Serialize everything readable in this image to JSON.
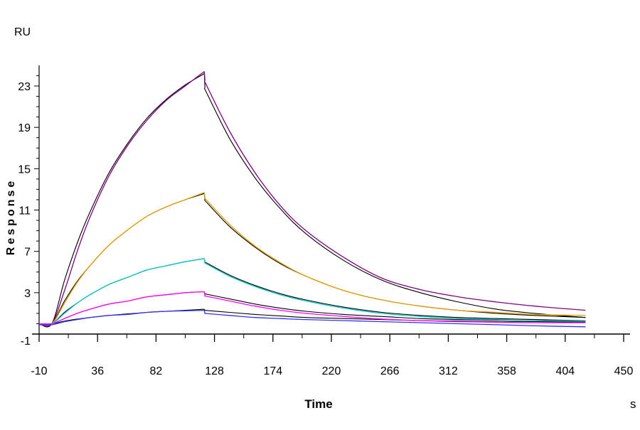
{
  "chart_data": {
    "type": "line",
    "title": "",
    "unit_label": "RU",
    "ylabel": "Response",
    "xlabel": "Time",
    "x_unit": "s",
    "xlim": [
      -10,
      450
    ],
    "ylim": [
      -1,
      25
    ],
    "x_ticks": [
      -10,
      36,
      82,
      128,
      174,
      220,
      266,
      312,
      358,
      404,
      450
    ],
    "y_ticks": [
      -1,
      3,
      7,
      11,
      15,
      19,
      23
    ],
    "grid": false,
    "legend": "none",
    "association_time": [
      -10,
      0,
      10,
      20,
      30,
      45,
      60,
      75,
      90,
      105,
      120
    ],
    "dissociation_time": [
      120,
      140,
      160,
      180,
      200,
      230,
      260,
      290,
      320,
      350,
      380,
      420
    ],
    "series": [
      {
        "kind": "fit",
        "color": "#000000",
        "association": [
          0,
          0,
          4.2,
          7.8,
          10.8,
          14.6,
          17.5,
          19.9,
          21.7,
          23.1,
          24.2
        ],
        "dissociation": [
          22.8,
          17.9,
          14.1,
          11.1,
          8.7,
          6.1,
          4.2,
          3.0,
          2.1,
          1.4,
          1.0,
          0.6
        ]
      },
      {
        "kind": "fit",
        "color": "#000000",
        "association": [
          0,
          0,
          2.2,
          4.1,
          5.6,
          7.6,
          9.1,
          10.4,
          11.3,
          12.0,
          12.6
        ],
        "dissociation": [
          12.0,
          9.4,
          7.4,
          5.8,
          4.6,
          3.2,
          2.3,
          1.7,
          1.3,
          1.0,
          0.8,
          0.6
        ]
      },
      {
        "kind": "fit",
        "color": "#000000",
        "association": [
          0,
          0,
          1.1,
          2.0,
          2.8,
          3.8,
          4.5,
          5.2,
          5.6,
          6.0,
          6.3
        ],
        "dissociation": [
          6.0,
          4.7,
          3.7,
          2.9,
          2.3,
          1.6,
          1.1,
          0.8,
          0.6,
          0.5,
          0.4,
          0.3
        ]
      },
      {
        "kind": "fit",
        "color": "#000000",
        "association": [
          0,
          0,
          0.5,
          1.0,
          1.4,
          1.9,
          2.2,
          2.6,
          2.8,
          3.0,
          3.1
        ],
        "dissociation": [
          2.9,
          2.4,
          1.9,
          1.5,
          1.2,
          0.9,
          0.7,
          0.5,
          0.4,
          0.35,
          0.3,
          0.25
        ]
      },
      {
        "kind": "fit",
        "color": "#000000",
        "association": [
          0,
          0,
          0.25,
          0.45,
          0.6,
          0.8,
          0.95,
          1.1,
          1.2,
          1.3,
          1.4
        ],
        "dissociation": [
          1.3,
          1.1,
          0.9,
          0.75,
          0.6,
          0.5,
          0.4,
          0.3,
          0.25,
          0.2,
          0.2,
          0.15
        ]
      },
      {
        "kind": "measured",
        "color": "#800080",
        "association": [
          0,
          0,
          3.2,
          7.0,
          10.3,
          14.3,
          17.3,
          19.7,
          21.6,
          23.0,
          24.4
        ],
        "dissociation": [
          23.5,
          18.6,
          14.6,
          11.4,
          9.0,
          6.4,
          4.4,
          3.3,
          2.6,
          2.1,
          1.7,
          1.3
        ]
      },
      {
        "kind": "measured",
        "color": "#e8a000",
        "association": [
          0,
          0,
          2.0,
          4.0,
          5.6,
          7.6,
          9.1,
          10.4,
          11.3,
          12.0,
          12.7
        ],
        "dissociation": [
          12.2,
          9.6,
          7.5,
          5.9,
          4.6,
          3.2,
          2.3,
          1.7,
          1.3,
          1.1,
          0.9,
          0.8
        ]
      },
      {
        "kind": "measured",
        "color": "#00c8c8",
        "association": [
          0,
          0,
          1.0,
          2.0,
          2.8,
          3.8,
          4.5,
          5.2,
          5.6,
          6.0,
          6.3
        ],
        "dissociation": [
          5.9,
          4.6,
          3.6,
          2.8,
          2.2,
          1.5,
          1.0,
          0.7,
          0.5,
          0.4,
          0.3,
          0.3
        ]
      },
      {
        "kind": "measured",
        "color": "#ff00ff",
        "association": [
          0,
          0,
          0.5,
          1.0,
          1.4,
          1.9,
          2.2,
          2.6,
          2.8,
          3.0,
          3.1
        ],
        "dissociation": [
          2.7,
          2.2,
          1.7,
          1.3,
          1.0,
          0.7,
          0.45,
          0.3,
          0.2,
          0.15,
          0.1,
          0.1
        ]
      },
      {
        "kind": "measured",
        "color": "#3030ff",
        "association": [
          -0.1,
          -0.1,
          0.2,
          0.4,
          0.6,
          0.8,
          0.9,
          1.1,
          1.2,
          1.25,
          1.3
        ],
        "dissociation": [
          1.0,
          0.8,
          0.6,
          0.5,
          0.4,
          0.3,
          0.2,
          0.1,
          0.0,
          -0.1,
          -0.2,
          -0.3
        ]
      }
    ]
  }
}
